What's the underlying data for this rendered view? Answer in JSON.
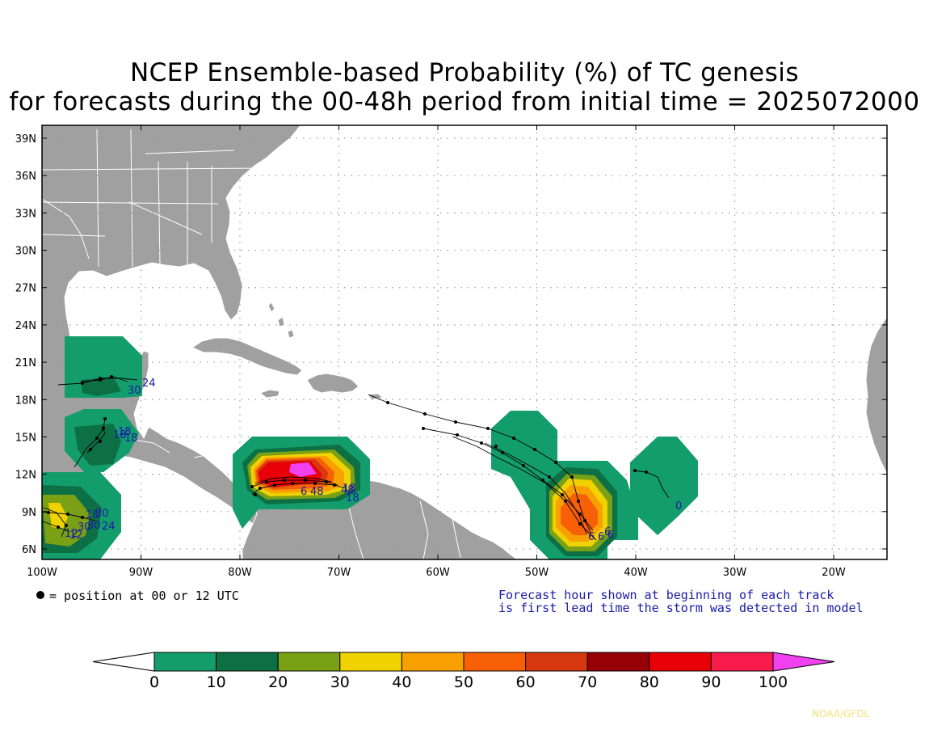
{
  "title": {
    "line1": "NCEP Ensemble-based Probability (%) of TC genesis",
    "line2": "for forecasts during the 00-48h period from initial time = 2025072000"
  },
  "axes": {
    "lat_labels": [
      "39N",
      "36N",
      "33N",
      "30N",
      "27N",
      "24N",
      "21N",
      "18N",
      "15N",
      "12N",
      "9N",
      "6N"
    ],
    "lon_labels": [
      "100W",
      "90W",
      "80W",
      "70W",
      "60W",
      "50W",
      "40W",
      "30W",
      "20W"
    ]
  },
  "legend": {
    "dot_text": "= position at 00 or 12 UTC",
    "note_line1": "Forecast hour shown at beginning of each track",
    "note_line2": "is first lead time the storm was detected in model"
  },
  "colorbar": {
    "labels": [
      "0",
      "10",
      "20",
      "30",
      "40",
      "50",
      "60",
      "70",
      "80",
      "90",
      "100"
    ],
    "colors": [
      "#139c6c",
      "#0c7044",
      "#7aa016",
      "#f0d200",
      "#f8a000",
      "#f86008",
      "#d83810",
      "#980008",
      "#e80008",
      "#f81c4c"
    ],
    "over_color": "#f040f0",
    "under_color": "#ffffff"
  },
  "colors": {
    "land": "#a0a0a0",
    "border": "#ffffff",
    "track": "#000000",
    "hour_label": "#1a1aa8"
  },
  "track_labels": [
    "24",
    "30",
    "18",
    "18",
    "18",
    "30",
    "24",
    "12",
    "12",
    "30",
    "30",
    "18",
    "6",
    "48",
    "48",
    "18",
    "18",
    "6",
    "6",
    "6",
    "6",
    "0"
  ],
  "credit": "NOAA/GFDL"
}
